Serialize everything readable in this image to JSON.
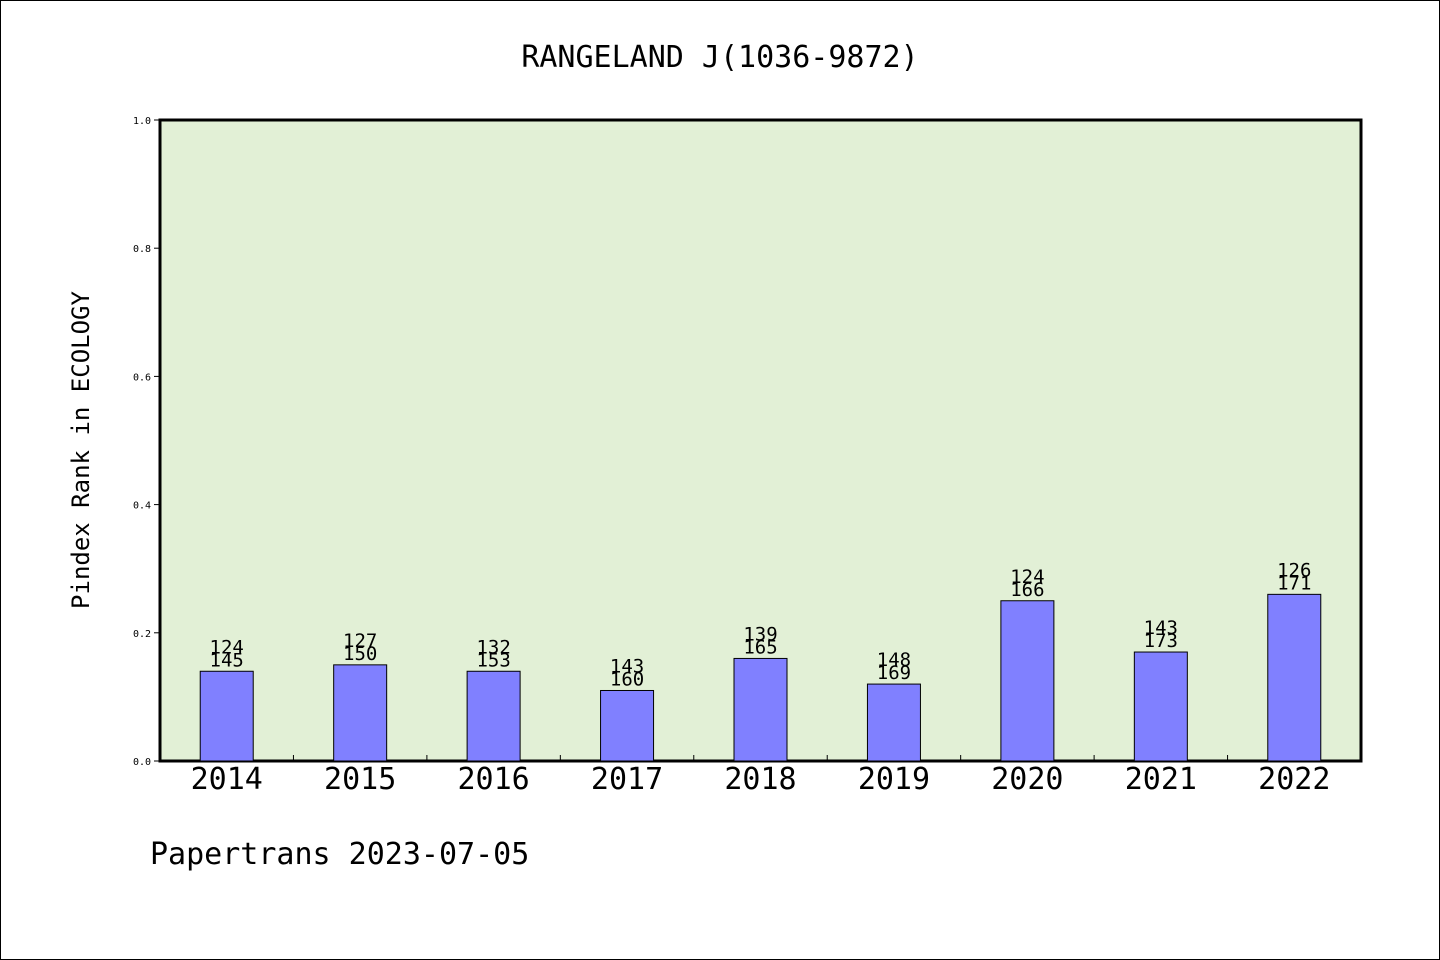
{
  "chart_data": {
    "type": "bar",
    "title": "RANGELAND J(1036-9872)",
    "ylabel": "Pindex Rank in ECOLOGY",
    "xlabel": "",
    "ylim": [
      0,
      1.0
    ],
    "yticks": [
      "0.0",
      "0.2",
      "0.4",
      "0.6",
      "0.8",
      "1.0"
    ],
    "categories": [
      "2014",
      "2015",
      "2016",
      "2017",
      "2018",
      "2019",
      "2020",
      "2021",
      "2022"
    ],
    "values": [
      0.14,
      0.15,
      0.14,
      0.11,
      0.16,
      0.12,
      0.25,
      0.17,
      0.26
    ],
    "rank_labels": [
      "124",
      "127",
      "132",
      "143",
      "139",
      "148",
      "124",
      "143",
      "126"
    ],
    "total_labels": [
      "145",
      "150",
      "153",
      "160",
      "165",
      "169",
      "166",
      "173",
      "171"
    ],
    "grid": false,
    "legend": "none",
    "colors": {
      "plot_background": "#e2f0d6",
      "bar_fill": "#8080ff",
      "bar_stroke": "#000000"
    }
  },
  "footer": {
    "text": "Papertrans 2023-07-05"
  }
}
